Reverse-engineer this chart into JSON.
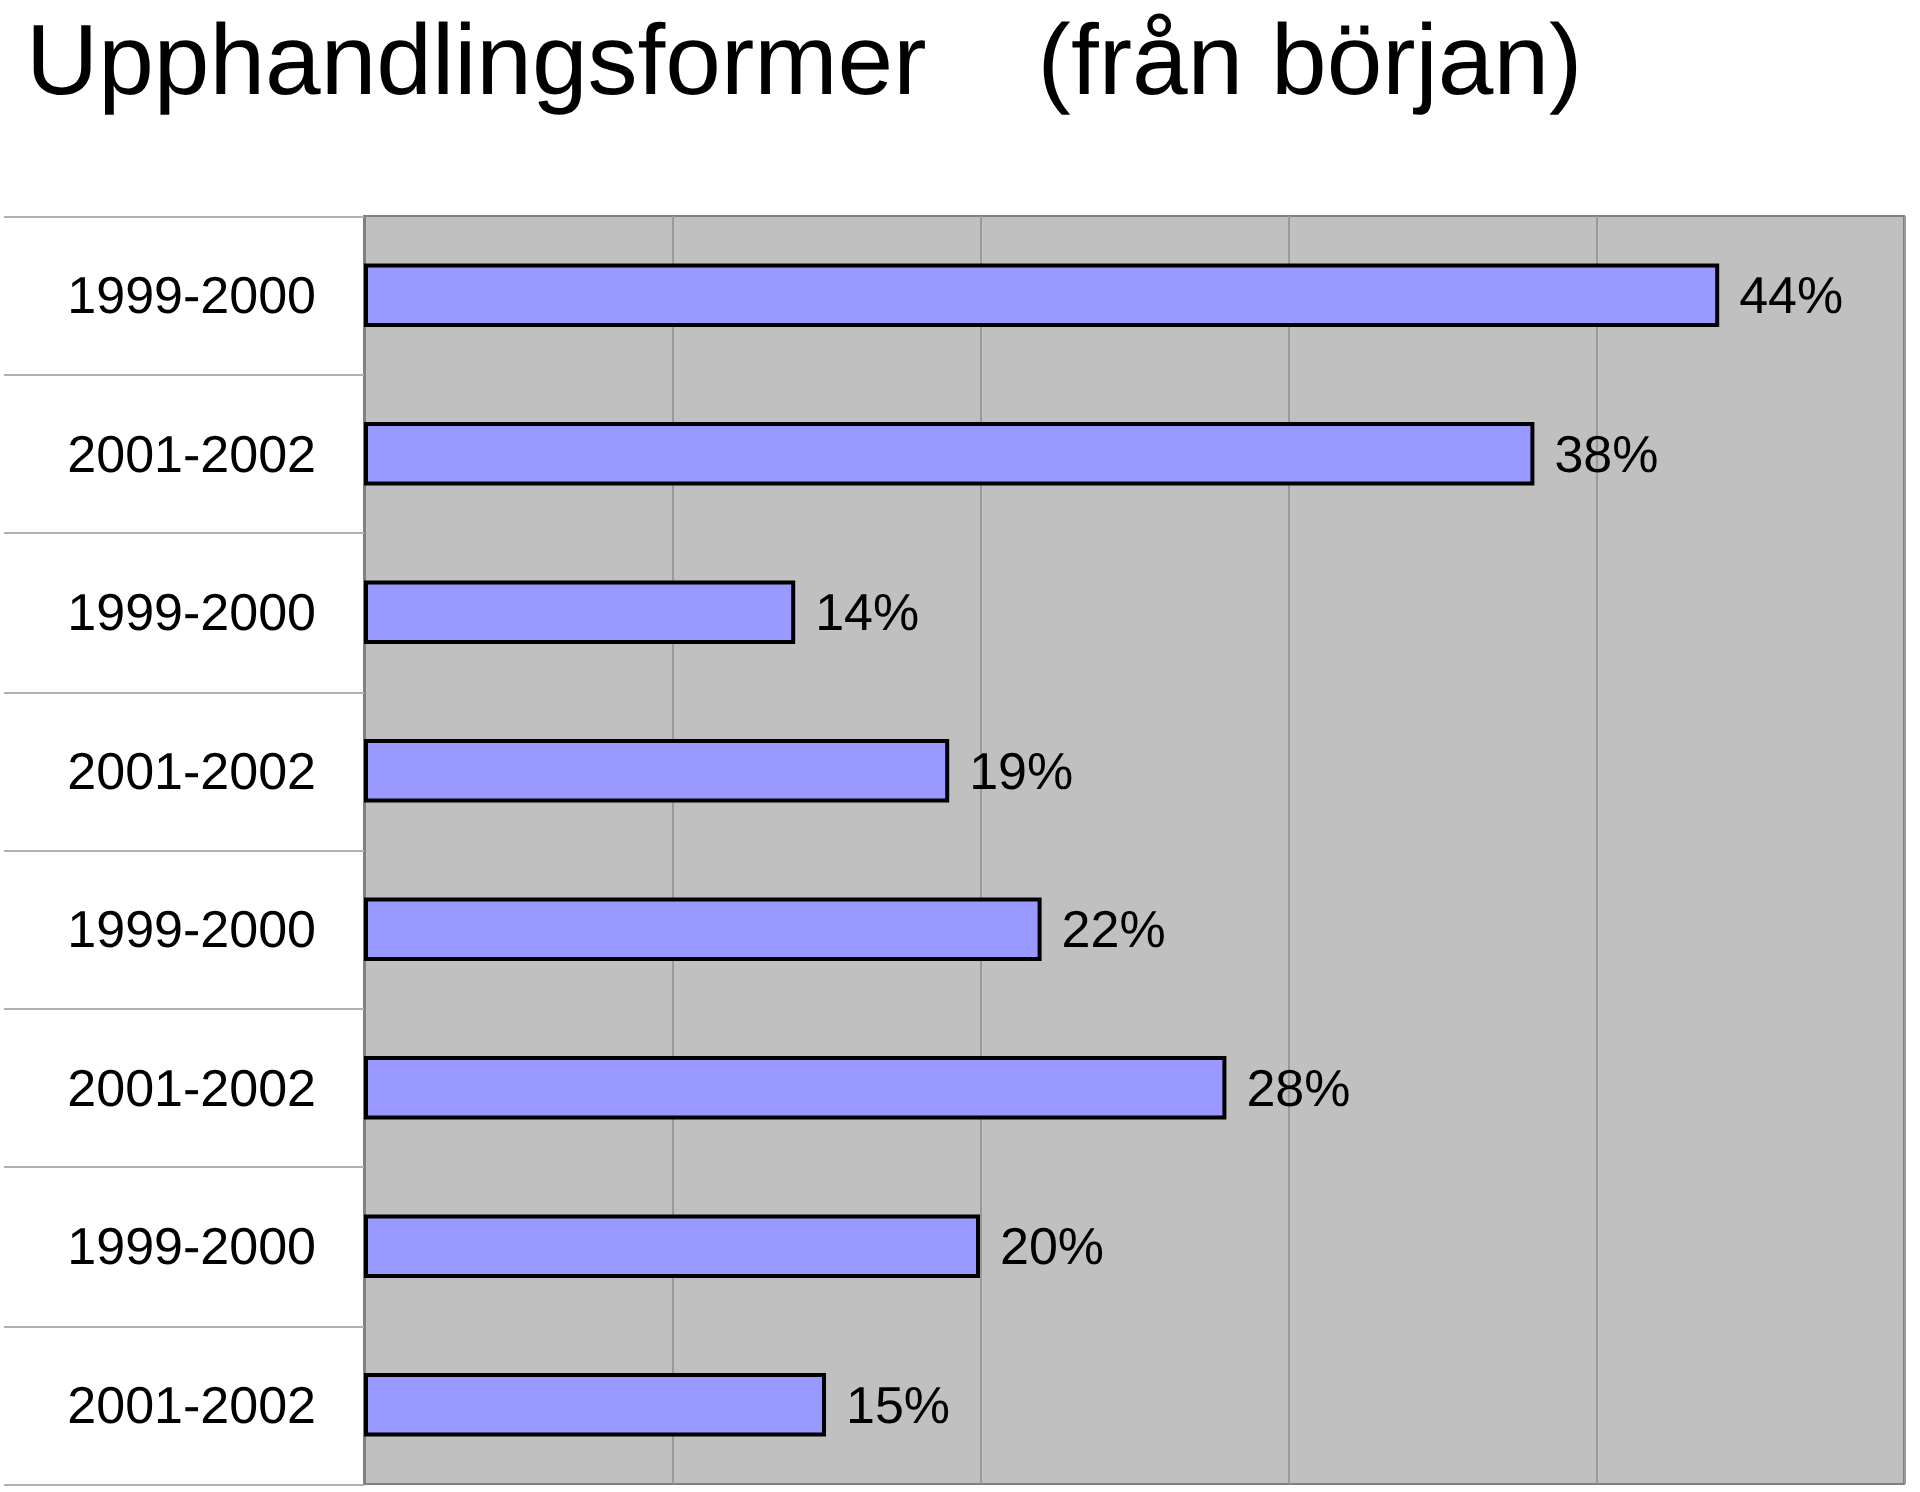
{
  "chart_data": {
    "type": "bar",
    "orientation": "horizontal",
    "title": "Upphandlingsformer    (från början)",
    "categories": [
      "1999-2000",
      "2001-2002",
      "1999-2000",
      "2001-2002",
      "1999-2000",
      "2001-2002",
      "1999-2000",
      "2001-2002"
    ],
    "values": [
      44,
      38,
      14,
      19,
      22,
      28,
      20,
      15
    ],
    "value_labels": [
      "44%",
      "38%",
      "14%",
      "19%",
      "22%",
      "28%",
      "20%",
      "15%"
    ],
    "color": "#9999ff",
    "xlim": [
      0,
      50
    ],
    "xticks": [
      {
        "value": 0,
        "label": null
      },
      {
        "value": 10,
        "label": null
      },
      {
        "value": 20,
        "label": null
      },
      {
        "value": 30,
        "label": null
      },
      {
        "value": 40,
        "label": null
      },
      {
        "value": 50,
        "label": null
      }
    ],
    "tick_labels": "y",
    "grid": "x"
  }
}
